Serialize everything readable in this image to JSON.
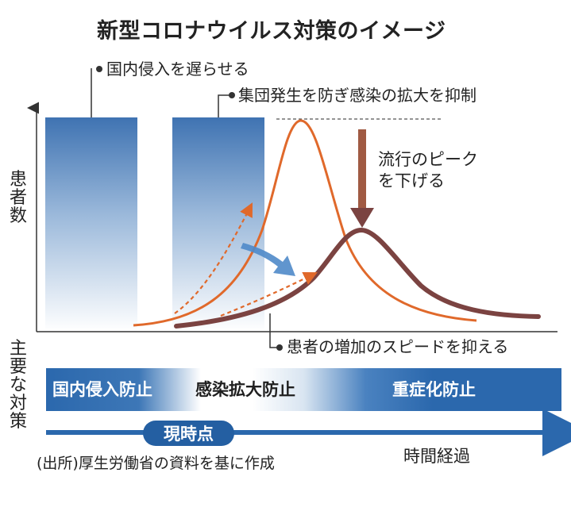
{
  "title": "新型コロナウイルス対策のイメージ",
  "callouts": {
    "entry": "国内侵入を遅らせる",
    "cluster": "集団発生を防ぎ感染の拡大を抑制",
    "speed": "患者の増加のスピードを抑える"
  },
  "peak_note": {
    "line1": "流行のピーク",
    "line2": "を下げる"
  },
  "y_axis_label": [
    "患",
    "者",
    "数"
  ],
  "measures_label": [
    "主",
    "要",
    "な",
    "対",
    "策"
  ],
  "measure_band": [
    "国内侵入防止",
    "感染拡大防止",
    "重症化防止"
  ],
  "timeline": {
    "now": "現時点",
    "elapsed": "時間経過"
  },
  "source": "(出所)厚生労働省の資料を基に作成",
  "colors": {
    "orange_curve": "#e0692b",
    "brown_curve": "#7b4341",
    "blue": "#2b68ad",
    "blue_arrow": "#4f8ac9"
  }
}
